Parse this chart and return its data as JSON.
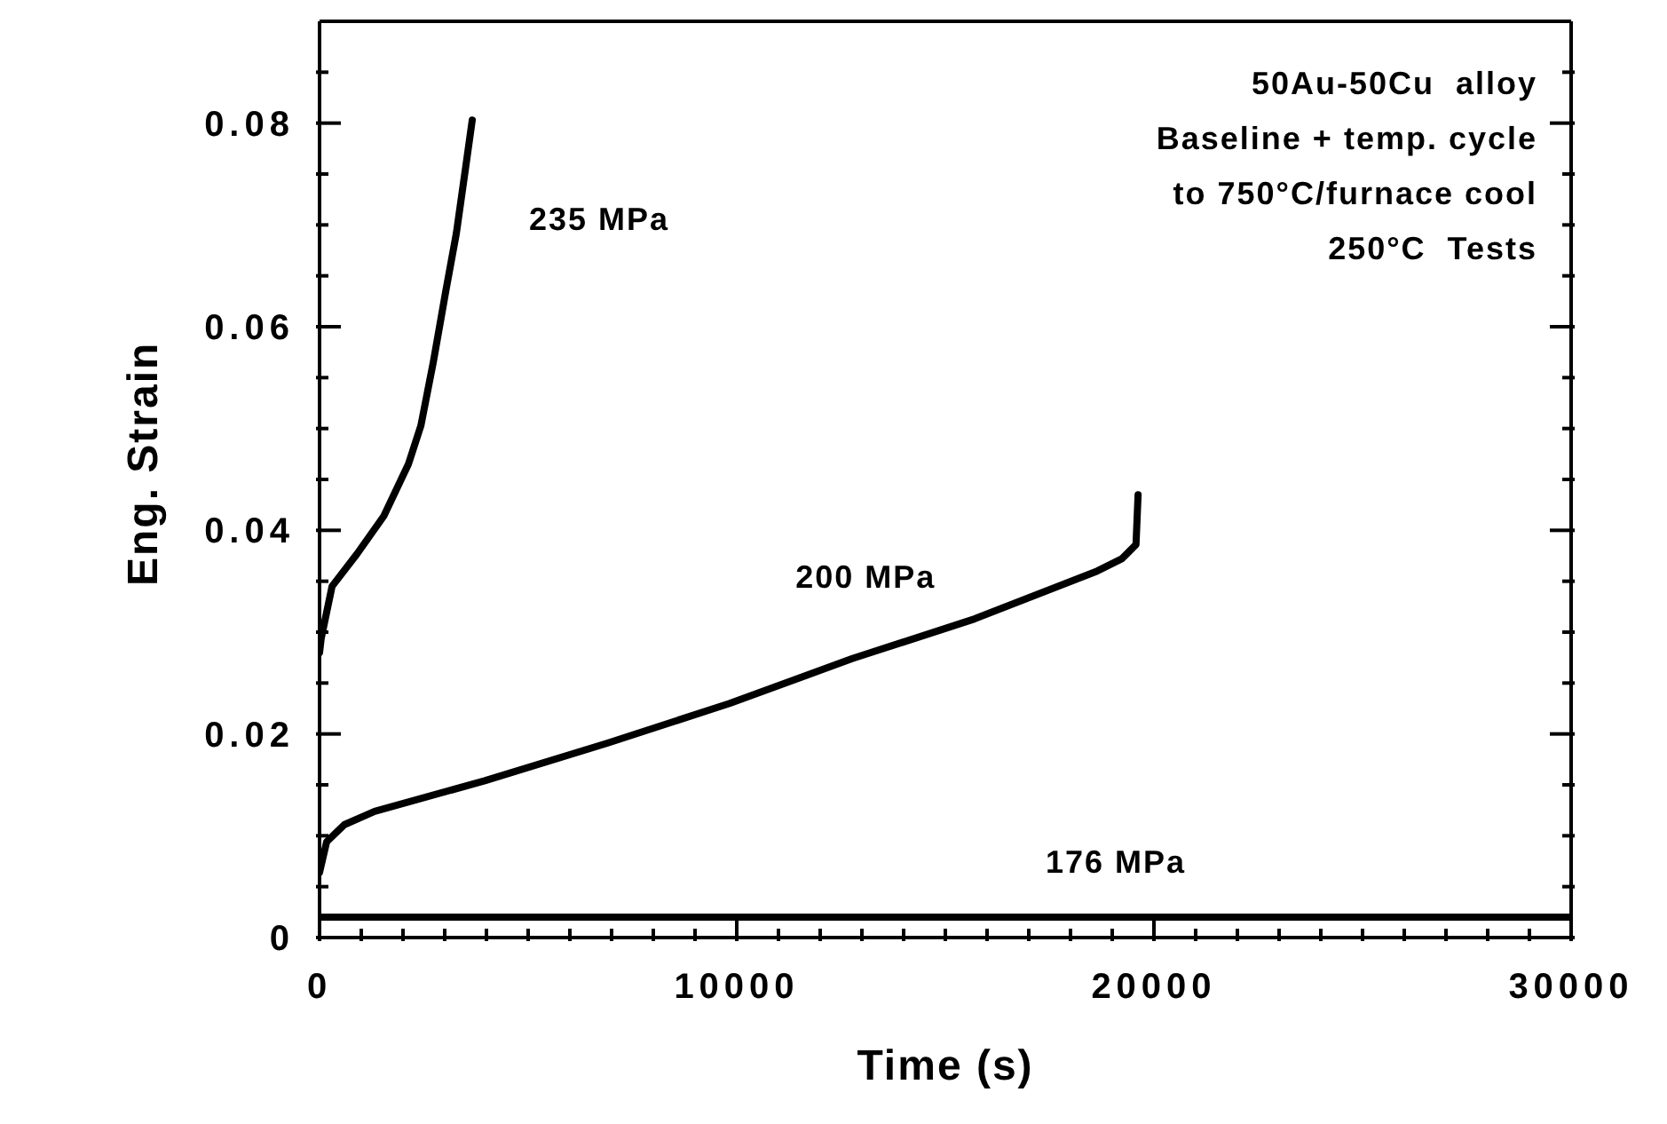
{
  "chart_data": {
    "type": "line",
    "xlabel": "Time (s)",
    "ylabel": "Eng. Strain",
    "annotations": [
      "50Au-50Cu  alloy",
      "Baseline + temp. cycle",
      "to 750°C/furnace cool",
      "250°C  Tests"
    ],
    "xlim": [
      0,
      30000
    ],
    "ylim": [
      0,
      0.09
    ],
    "xticks": [
      0,
      {
        "value": 1000,
        "label": null
      },
      {
        "value": 2000,
        "label": null
      },
      {
        "value": 3000,
        "label": null
      },
      {
        "value": 4000,
        "label": null
      },
      {
        "value": 5000,
        "label": null
      },
      {
        "value": 6000,
        "label": null
      },
      {
        "value": 7000,
        "label": null
      },
      {
        "value": 8000,
        "label": null
      },
      {
        "value": 9000,
        "label": null
      },
      10000,
      {
        "value": 11000,
        "label": null
      },
      {
        "value": 12000,
        "label": null
      },
      {
        "value": 13000,
        "label": null
      },
      {
        "value": 14000,
        "label": null
      },
      {
        "value": 15000,
        "label": null
      },
      {
        "value": 16000,
        "label": null
      },
      {
        "value": 17000,
        "label": null
      },
      {
        "value": 18000,
        "label": null
      },
      {
        "value": 19000,
        "label": null
      },
      20000,
      {
        "value": 21000,
        "label": null
      },
      {
        "value": 22000,
        "label": null
      },
      {
        "value": 23000,
        "label": null
      },
      {
        "value": 24000,
        "label": null
      },
      {
        "value": 25000,
        "label": null
      },
      {
        "value": 26000,
        "label": null
      },
      {
        "value": 27000,
        "label": null
      },
      {
        "value": 28000,
        "label": null
      },
      {
        "value": 29000,
        "label": null
      },
      30000
    ],
    "yticks": [
      0,
      {
        "value": 0.005,
        "label": null
      },
      {
        "value": 0.01,
        "label": null
      },
      {
        "value": 0.015,
        "label": null
      },
      0.02,
      {
        "value": 0.025,
        "label": null
      },
      {
        "value": 0.03,
        "label": null
      },
      {
        "value": 0.035,
        "label": null
      },
      0.04,
      {
        "value": 0.045,
        "label": null
      },
      {
        "value": 0.05,
        "label": null
      },
      {
        "value": 0.055,
        "label": null
      },
      0.06,
      {
        "value": 0.065,
        "label": null
      },
      {
        "value": 0.07,
        "label": null
      },
      {
        "value": 0.075,
        "label": null
      },
      0.08,
      {
        "value": 0.085,
        "label": null
      }
    ],
    "legend": false,
    "marker": "none",
    "line_style": "solid",
    "series": [
      {
        "name": "235  MPa",
        "color": "#000000",
        "x": [
          0,
          40,
          300,
          900,
          1540,
          2130,
          2430,
          2730,
          3030,
          3280,
          3500,
          3660
        ],
        "values": [
          0.028,
          0.0294,
          0.0345,
          0.0377,
          0.0414,
          0.0465,
          0.0503,
          0.0566,
          0.0636,
          0.0692,
          0.0756,
          0.0803
        ]
      },
      {
        "name": "200  MPa",
        "color": "#000000",
        "x": [
          0,
          170,
          600,
          1320,
          3960,
          6900,
          9830,
          12770,
          15700,
          18640,
          19230,
          19570,
          19620
        ],
        "values": [
          0.0064,
          0.0094,
          0.0111,
          0.0124,
          0.0154,
          0.0191,
          0.023,
          0.0274,
          0.0313,
          0.036,
          0.0372,
          0.0386,
          0.0435
        ]
      },
      {
        "name": "176  MPa",
        "color": "#000000",
        "x": [
          0,
          30000
        ],
        "values": [
          0.002,
          0.002
        ]
      }
    ]
  }
}
